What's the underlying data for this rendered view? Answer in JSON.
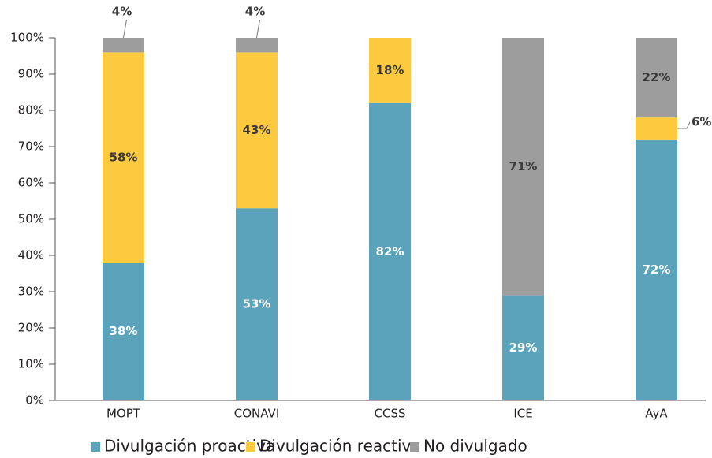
{
  "chart_data": {
    "type": "stacked_bar",
    "categories": [
      "MOPT",
      "CONAVI",
      "CCSS",
      "ICE",
      "AyA"
    ],
    "series": [
      {
        "name": "Divulgación proactiva",
        "color": "#5ba3bb",
        "values": [
          38,
          53,
          82,
          29,
          72
        ],
        "value_labels": [
          "38%",
          "53%",
          "82%",
          "29%",
          "72%"
        ]
      },
      {
        "name": "Divulgación reactiva",
        "color": "#fdc93e",
        "values": [
          58,
          43,
          18,
          null,
          6
        ],
        "value_labels": [
          "58%",
          "43%",
          "18%",
          null,
          "6%"
        ]
      },
      {
        "name": "No divulgado",
        "color": "#9d9d9d",
        "values": [
          4,
          4,
          null,
          71,
          22
        ],
        "value_labels": [
          "4%",
          "4%",
          null,
          "71%",
          "22%"
        ]
      }
    ],
    "ylim": [
      0,
      100
    ],
    "yticks": [
      {
        "value": 0,
        "label": "0%"
      },
      {
        "value": 10,
        "label": "10%"
      },
      {
        "value": 20,
        "label": "20%"
      },
      {
        "value": 30,
        "label": "30%"
      },
      {
        "value": 40,
        "label": "40%"
      },
      {
        "value": 50,
        "label": "50%"
      },
      {
        "value": 60,
        "label": "60%"
      },
      {
        "value": 70,
        "label": "70%"
      },
      {
        "value": 80,
        "label": "80%"
      },
      {
        "value": 90,
        "label": "90%"
      },
      {
        "value": 100,
        "label": "100%"
      }
    ],
    "legend": "bottom"
  }
}
